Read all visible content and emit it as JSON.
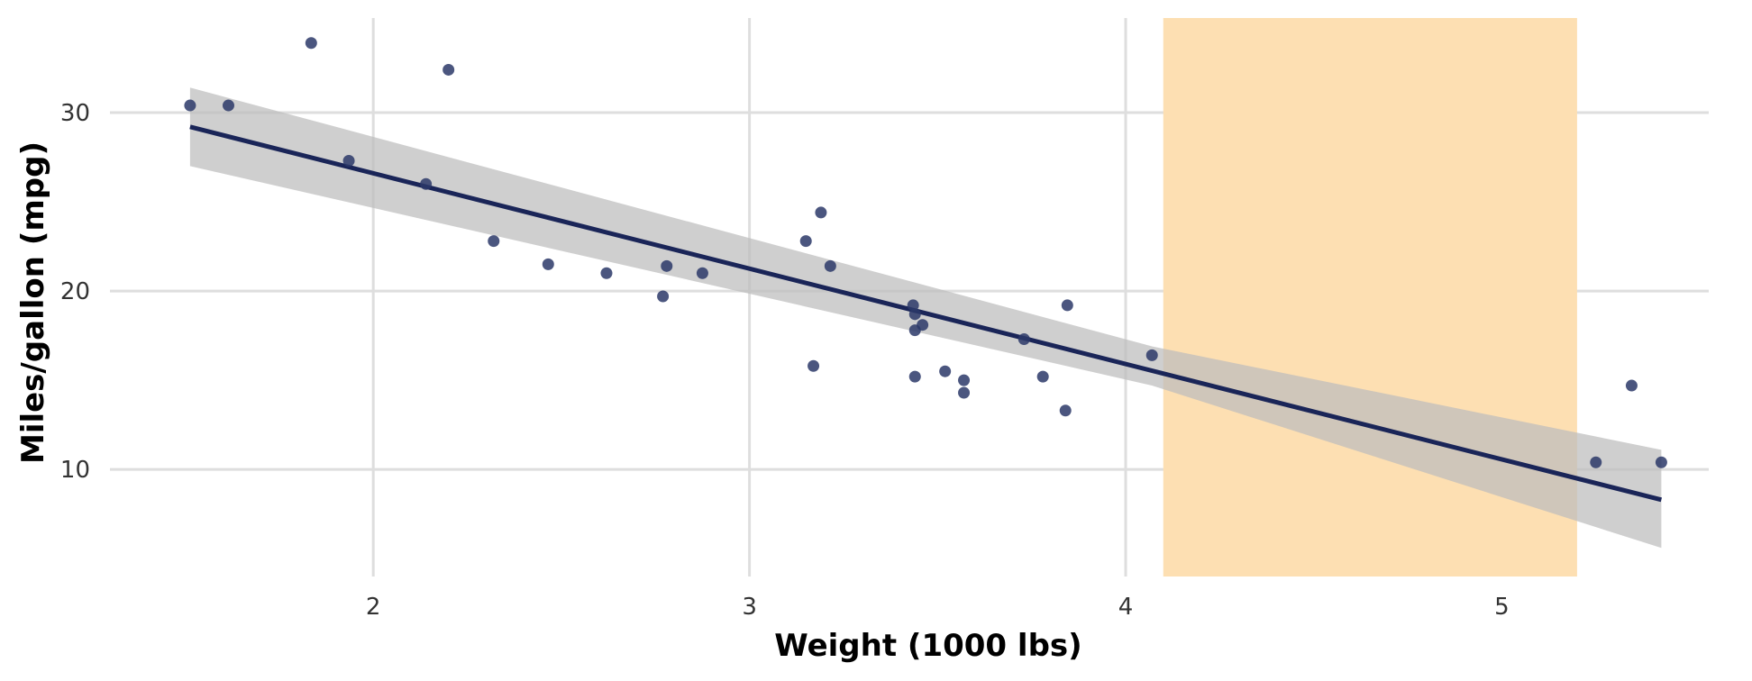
{
  "chart_data": {
    "type": "scatter",
    "xlabel": "Weight (1000 lbs)",
    "ylabel": "Miles/gallon (mpg)",
    "xlim": [
      1.3,
      5.55
    ],
    "ylim": [
      4,
      35.3
    ],
    "grid": true,
    "x_ticks": [
      2,
      3,
      4,
      5
    ],
    "y_ticks": [
      10,
      20,
      30
    ],
    "x_tick_labels": [
      "2",
      "3",
      "4",
      "5"
    ],
    "y_tick_labels": [
      "10",
      "20",
      "30"
    ],
    "highlight_region": {
      "x_from": 4.1,
      "x_to": 5.2,
      "color": "#fddfb2"
    },
    "colors": {
      "points": "#2b3868",
      "line": "#1a2558",
      "band": "#bdbdbd",
      "grid": "#dedede"
    },
    "points": [
      {
        "x": 1.513,
        "y": 30.4
      },
      {
        "x": 1.615,
        "y": 30.4
      },
      {
        "x": 1.835,
        "y": 33.9
      },
      {
        "x": 1.935,
        "y": 27.3
      },
      {
        "x": 2.14,
        "y": 26.0
      },
      {
        "x": 2.2,
        "y": 32.4
      },
      {
        "x": 2.32,
        "y": 22.8
      },
      {
        "x": 2.465,
        "y": 21.5
      },
      {
        "x": 2.62,
        "y": 21.0
      },
      {
        "x": 2.77,
        "y": 19.7
      },
      {
        "x": 2.78,
        "y": 21.4
      },
      {
        "x": 2.875,
        "y": 21.0
      },
      {
        "x": 3.15,
        "y": 22.8
      },
      {
        "x": 3.17,
        "y": 15.8
      },
      {
        "x": 3.19,
        "y": 24.4
      },
      {
        "x": 3.215,
        "y": 21.4
      },
      {
        "x": 3.435,
        "y": 19.2
      },
      {
        "x": 3.44,
        "y": 18.7
      },
      {
        "x": 3.44,
        "y": 17.8
      },
      {
        "x": 3.44,
        "y": 15.2
      },
      {
        "x": 3.46,
        "y": 18.1
      },
      {
        "x": 3.52,
        "y": 15.5
      },
      {
        "x": 3.57,
        "y": 15.0
      },
      {
        "x": 3.57,
        "y": 14.3
      },
      {
        "x": 3.73,
        "y": 17.3
      },
      {
        "x": 3.78,
        "y": 15.2
      },
      {
        "x": 3.84,
        "y": 13.3
      },
      {
        "x": 3.845,
        "y": 19.2
      },
      {
        "x": 4.07,
        "y": 16.4
      },
      {
        "x": 5.25,
        "y": 10.4
      },
      {
        "x": 5.345,
        "y": 14.7
      },
      {
        "x": 5.424,
        "y": 10.4
      }
    ],
    "fit_line": {
      "x": [
        1.513,
        5.424
      ],
      "y": [
        29.2,
        8.3
      ]
    },
    "confidence_band": {
      "x": [
        1.513,
        4.07,
        5.424
      ],
      "upper": [
        31.4,
        16.9,
        11.1
      ],
      "lower": [
        27.0,
        14.7,
        5.6
      ]
    }
  }
}
